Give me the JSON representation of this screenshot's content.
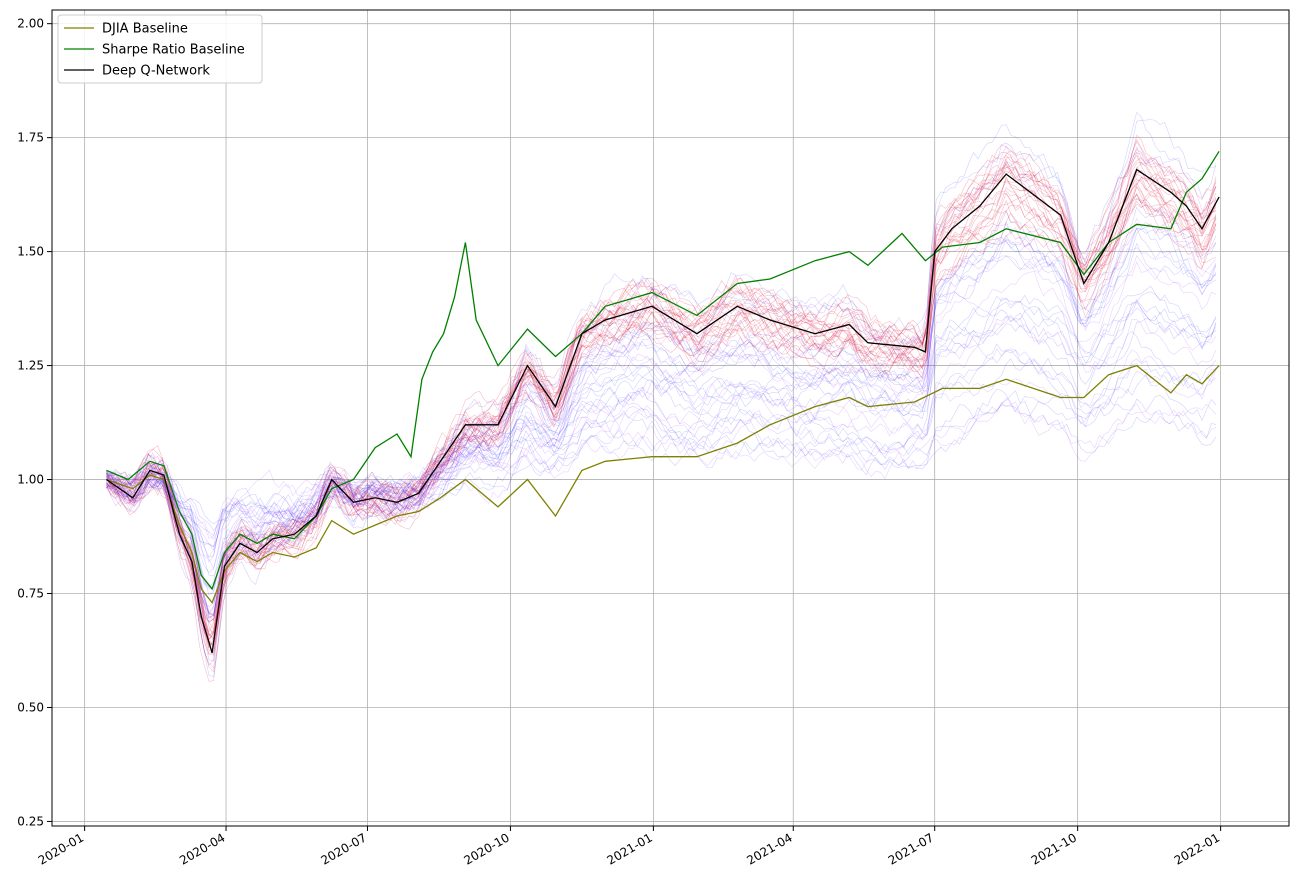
{
  "chart_data": {
    "type": "line",
    "title": "",
    "xlabel": "",
    "ylabel": "",
    "x_tick_labels": [
      "2020-01",
      "2020-04",
      "2020-07",
      "2020-10",
      "2021-01",
      "2021-04",
      "2021-07",
      "2021-10",
      "2022-01"
    ],
    "y_tick_labels": [
      "0.25",
      "0.50",
      "0.75",
      "1.00",
      "1.25",
      "1.50",
      "1.75",
      "2.00"
    ],
    "y_ticks": [
      0.25,
      0.5,
      0.75,
      1.0,
      1.25,
      1.5,
      1.75,
      2.0
    ],
    "xlim": [
      "2019-12-11",
      "2022-02-14"
    ],
    "ylim": [
      0.24,
      2.03
    ],
    "grid": true,
    "legend_position": "top-left",
    "series": [
      {
        "name": "DJIA Baseline",
        "color": "#808000",
        "points": [
          [
            "2020-01-15",
            1.0
          ],
          [
            "2020-02-01",
            0.98
          ],
          [
            "2020-02-12",
            1.01
          ],
          [
            "2020-02-21",
            1.0
          ],
          [
            "2020-03-02",
            0.9
          ],
          [
            "2020-03-10",
            0.84
          ],
          [
            "2020-03-16",
            0.76
          ],
          [
            "2020-03-23",
            0.73
          ],
          [
            "2020-03-31",
            0.8
          ],
          [
            "2020-04-10",
            0.84
          ],
          [
            "2020-04-21",
            0.82
          ],
          [
            "2020-05-01",
            0.84
          ],
          [
            "2020-05-15",
            0.83
          ],
          [
            "2020-05-29",
            0.85
          ],
          [
            "2020-06-08",
            0.91
          ],
          [
            "2020-06-22",
            0.88
          ],
          [
            "2020-07-06",
            0.9
          ],
          [
            "2020-07-20",
            0.92
          ],
          [
            "2020-08-03",
            0.93
          ],
          [
            "2020-08-17",
            0.96
          ],
          [
            "2020-09-02",
            1.0
          ],
          [
            "2020-09-23",
            0.94
          ],
          [
            "2020-10-12",
            1.0
          ],
          [
            "2020-10-30",
            0.92
          ],
          [
            "2020-11-16",
            1.02
          ],
          [
            "2020-12-01",
            1.04
          ],
          [
            "2020-12-31",
            1.05
          ],
          [
            "2021-01-29",
            1.05
          ],
          [
            "2021-02-24",
            1.08
          ],
          [
            "2021-03-17",
            1.12
          ],
          [
            "2021-04-15",
            1.16
          ],
          [
            "2021-05-07",
            1.18
          ],
          [
            "2021-05-19",
            1.16
          ],
          [
            "2021-06-18",
            1.17
          ],
          [
            "2021-07-06",
            1.2
          ],
          [
            "2021-07-30",
            1.2
          ],
          [
            "2021-08-16",
            1.22
          ],
          [
            "2021-09-20",
            1.18
          ],
          [
            "2021-10-05",
            1.18
          ],
          [
            "2021-10-21",
            1.23
          ],
          [
            "2021-11-08",
            1.25
          ],
          [
            "2021-11-30",
            1.19
          ],
          [
            "2021-12-10",
            1.23
          ],
          [
            "2021-12-20",
            1.21
          ],
          [
            "2021-12-31",
            1.25
          ]
        ]
      },
      {
        "name": "Sharpe Ratio Baseline",
        "color": "#008000",
        "points": [
          [
            "2020-01-15",
            1.02
          ],
          [
            "2020-01-29",
            1.0
          ],
          [
            "2020-02-12",
            1.04
          ],
          [
            "2020-02-21",
            1.03
          ],
          [
            "2020-03-02",
            0.93
          ],
          [
            "2020-03-10",
            0.88
          ],
          [
            "2020-03-16",
            0.79
          ],
          [
            "2020-03-23",
            0.76
          ],
          [
            "2020-03-31",
            0.84
          ],
          [
            "2020-04-10",
            0.88
          ],
          [
            "2020-04-21",
            0.86
          ],
          [
            "2020-05-01",
            0.88
          ],
          [
            "2020-05-15",
            0.87
          ],
          [
            "2020-05-29",
            0.92
          ],
          [
            "2020-06-08",
            0.98
          ],
          [
            "2020-06-22",
            1.0
          ],
          [
            "2020-07-06",
            1.07
          ],
          [
            "2020-07-20",
            1.1
          ],
          [
            "2020-07-29",
            1.05
          ],
          [
            "2020-08-05",
            1.22
          ],
          [
            "2020-08-12",
            1.28
          ],
          [
            "2020-08-19",
            1.32
          ],
          [
            "2020-08-26",
            1.4
          ],
          [
            "2020-09-02",
            1.52
          ],
          [
            "2020-09-09",
            1.35
          ],
          [
            "2020-09-23",
            1.25
          ],
          [
            "2020-10-12",
            1.33
          ],
          [
            "2020-10-30",
            1.27
          ],
          [
            "2020-11-16",
            1.32
          ],
          [
            "2020-12-01",
            1.38
          ],
          [
            "2020-12-31",
            1.41
          ],
          [
            "2021-01-29",
            1.36
          ],
          [
            "2021-02-24",
            1.43
          ],
          [
            "2021-03-17",
            1.44
          ],
          [
            "2021-04-15",
            1.48
          ],
          [
            "2021-05-07",
            1.5
          ],
          [
            "2021-05-19",
            1.47
          ],
          [
            "2021-06-10",
            1.54
          ],
          [
            "2021-06-25",
            1.48
          ],
          [
            "2021-07-06",
            1.51
          ],
          [
            "2021-07-30",
            1.52
          ],
          [
            "2021-08-16",
            1.55
          ],
          [
            "2021-09-20",
            1.52
          ],
          [
            "2021-10-05",
            1.45
          ],
          [
            "2021-10-21",
            1.52
          ],
          [
            "2021-11-08",
            1.56
          ],
          [
            "2021-11-30",
            1.55
          ],
          [
            "2021-12-10",
            1.63
          ],
          [
            "2021-12-20",
            1.66
          ],
          [
            "2021-12-31",
            1.72
          ]
        ]
      },
      {
        "name": "Deep Q-Network",
        "color": "#000000",
        "points": [
          [
            "2020-01-15",
            1.0
          ],
          [
            "2020-02-01",
            0.96
          ],
          [
            "2020-02-12",
            1.02
          ],
          [
            "2020-02-21",
            1.01
          ],
          [
            "2020-03-02",
            0.88
          ],
          [
            "2020-03-10",
            0.82
          ],
          [
            "2020-03-16",
            0.7
          ],
          [
            "2020-03-23",
            0.62
          ],
          [
            "2020-03-31",
            0.81
          ],
          [
            "2020-04-10",
            0.86
          ],
          [
            "2020-04-21",
            0.84
          ],
          [
            "2020-05-01",
            0.87
          ],
          [
            "2020-05-15",
            0.88
          ],
          [
            "2020-05-29",
            0.92
          ],
          [
            "2020-06-08",
            1.0
          ],
          [
            "2020-06-22",
            0.95
          ],
          [
            "2020-07-06",
            0.96
          ],
          [
            "2020-07-20",
            0.95
          ],
          [
            "2020-08-03",
            0.97
          ],
          [
            "2020-08-17",
            1.04
          ],
          [
            "2020-09-02",
            1.12
          ],
          [
            "2020-09-23",
            1.12
          ],
          [
            "2020-10-12",
            1.25
          ],
          [
            "2020-10-30",
            1.16
          ],
          [
            "2020-11-16",
            1.32
          ],
          [
            "2020-12-01",
            1.35
          ],
          [
            "2020-12-31",
            1.38
          ],
          [
            "2021-01-29",
            1.32
          ],
          [
            "2021-02-24",
            1.38
          ],
          [
            "2021-03-17",
            1.35
          ],
          [
            "2021-04-15",
            1.32
          ],
          [
            "2021-05-07",
            1.34
          ],
          [
            "2021-05-19",
            1.3
          ],
          [
            "2021-06-18",
            1.29
          ],
          [
            "2021-06-25",
            1.28
          ],
          [
            "2021-07-01",
            1.5
          ],
          [
            "2021-07-12",
            1.55
          ],
          [
            "2021-07-30",
            1.6
          ],
          [
            "2021-08-16",
            1.67
          ],
          [
            "2021-09-20",
            1.58
          ],
          [
            "2021-10-05",
            1.43
          ],
          [
            "2021-10-21",
            1.52
          ],
          [
            "2021-11-08",
            1.68
          ],
          [
            "2021-11-30",
            1.63
          ],
          [
            "2021-12-10",
            1.6
          ],
          [
            "2021-12-20",
            1.55
          ],
          [
            "2021-12-31",
            1.62
          ]
        ]
      }
    ],
    "background_ensemble": {
      "description_colors": [
        "#dc143c",
        "#8b00ff",
        "#0000ff"
      ],
      "run_count": 60
    }
  }
}
